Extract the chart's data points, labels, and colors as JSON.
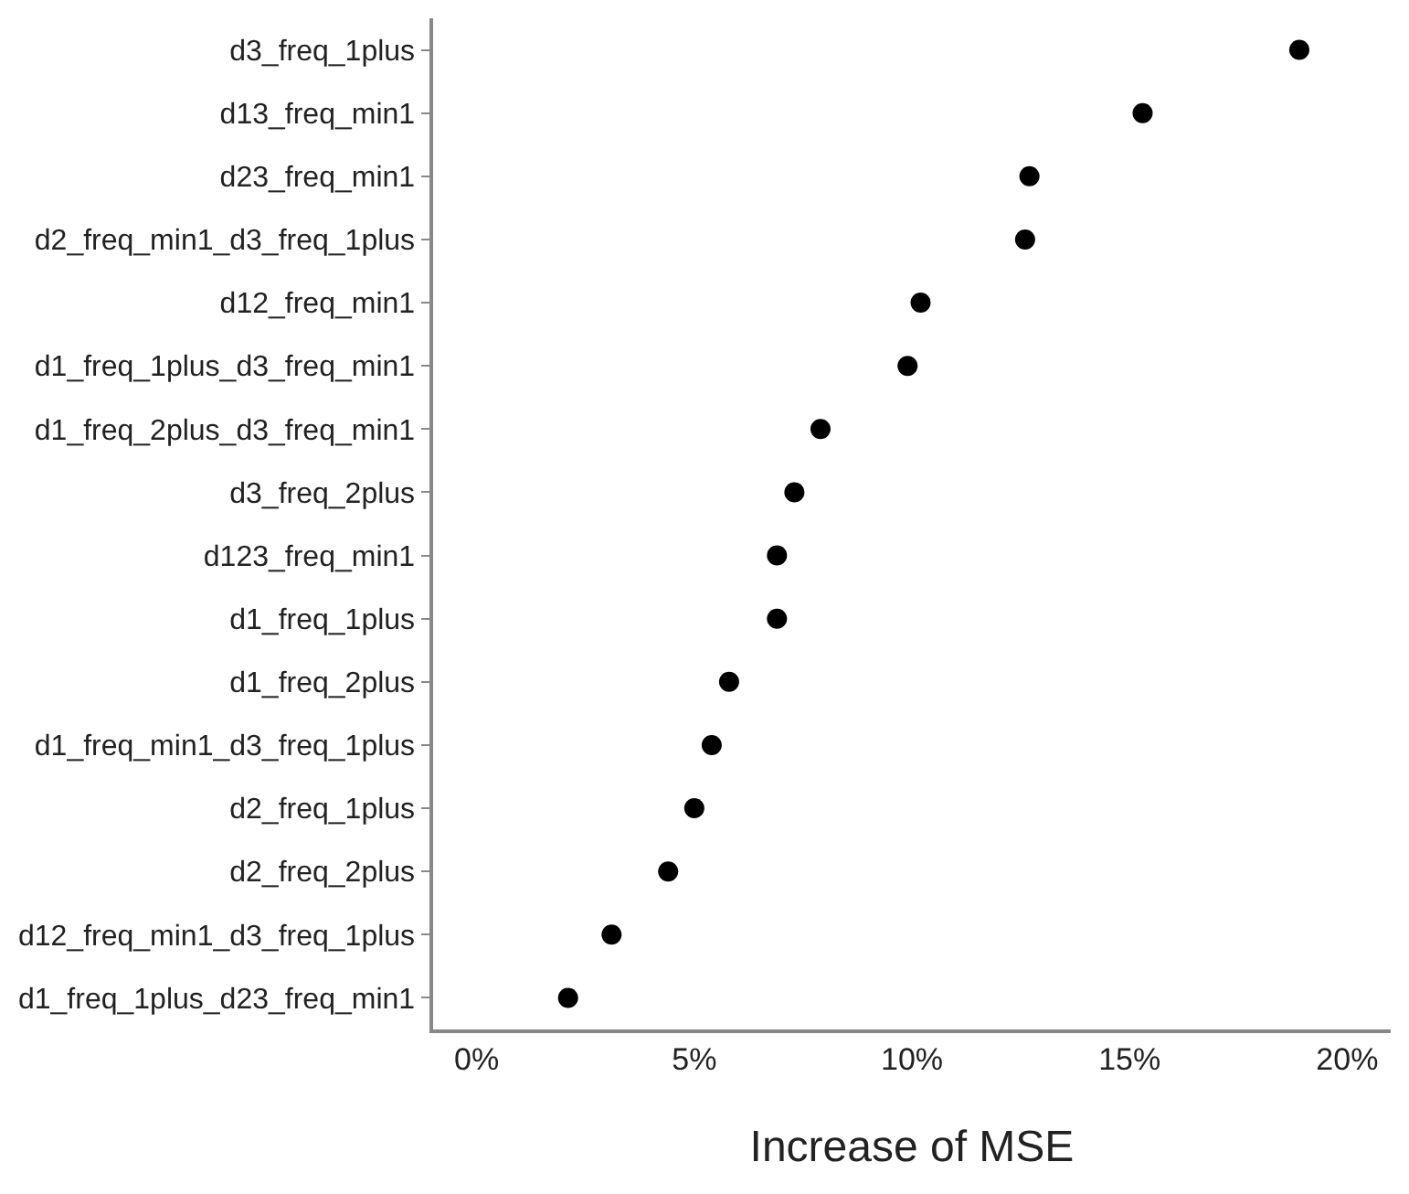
{
  "chart_data": {
    "type": "scatter",
    "xlabel": "Increase of MSE",
    "orientation": "horizontal",
    "categories": [
      "d3_freq_1plus",
      "d13_freq_min1",
      "d23_freq_min1",
      "d2_freq_min1_d3_freq_1plus",
      "d12_freq_min1",
      "d1_freq_1plus_d3_freq_min1",
      "d1_freq_2plus_d3_freq_min1",
      "d3_freq_2plus",
      "d123_freq_min1",
      "d1_freq_1plus",
      "d1_freq_2plus",
      "d1_freq_min1_d3_freq_1plus",
      "d2_freq_1plus",
      "d2_freq_2plus",
      "d12_freq_min1_d3_freq_1plus",
      "d1_freq_1plus_d23_freq_min1"
    ],
    "values": [
      18.9,
      15.3,
      12.7,
      12.6,
      10.2,
      9.9,
      7.9,
      7.3,
      6.9,
      6.9,
      5.8,
      5.4,
      5.0,
      4.4,
      3.1,
      2.1
    ],
    "color": "#000000",
    "marker": "circle",
    "xlim": [
      -1,
      21
    ],
    "xticks": [
      {
        "value": 0,
        "label": "0%"
      },
      {
        "value": 5,
        "label": "5%"
      },
      {
        "value": 10,
        "label": "10%"
      },
      {
        "value": 15,
        "label": "15%"
      },
      {
        "value": 20,
        "label": "20%"
      }
    ],
    "grid": false,
    "legend": false
  }
}
